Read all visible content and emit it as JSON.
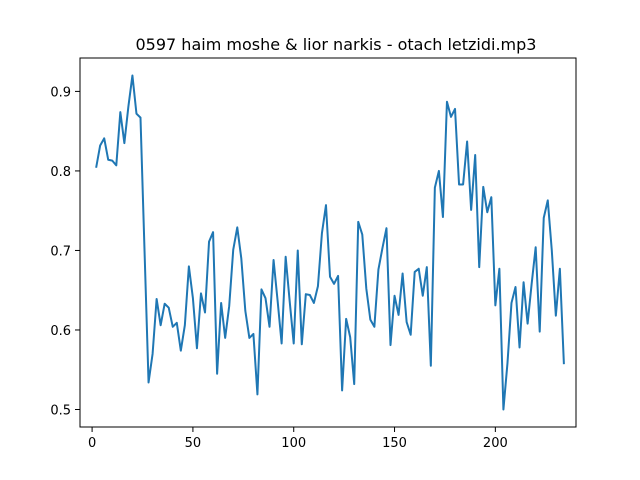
{
  "chart_data": {
    "type": "line",
    "title": "0597 haim moshe & lior narkis - otach letzidi.mp3",
    "xlabel": "",
    "ylabel": "",
    "xlim": [
      -6,
      240
    ],
    "ylim": [
      0.478,
      0.942
    ],
    "xticks": [
      0,
      50,
      100,
      150,
      200
    ],
    "yticks": [
      0.5,
      0.6,
      0.7,
      0.8,
      0.9
    ],
    "grid": false,
    "legend": "none",
    "colors": {
      "line": "#1f77b4"
    },
    "series": [
      {
        "x": [
          2,
          4,
          6,
          8,
          10,
          12,
          14,
          16,
          18,
          20,
          22,
          24,
          26,
          28,
          30,
          32,
          34,
          36,
          38,
          40,
          42,
          44,
          46,
          48,
          50,
          52,
          54,
          56,
          58,
          60,
          62,
          64,
          66,
          68,
          70,
          72,
          74,
          76,
          78,
          80,
          82,
          84,
          86,
          88,
          90,
          92,
          94,
          96,
          98,
          100,
          102,
          104,
          106,
          108,
          110,
          112,
          114,
          116,
          118,
          120,
          122,
          124,
          126,
          128,
          130,
          132,
          134,
          136,
          138,
          140,
          142,
          144,
          146,
          148,
          150,
          152,
          154,
          156,
          158,
          160,
          162,
          164,
          166,
          168,
          170,
          172,
          174,
          176,
          178,
          180,
          182,
          184,
          186,
          188,
          190,
          192,
          194,
          196,
          198,
          200,
          202,
          204,
          206,
          208,
          210,
          212,
          214,
          216,
          218,
          220,
          222,
          224,
          226,
          228,
          230,
          232,
          234
        ],
        "values": [
          0.804,
          0.832,
          0.841,
          0.814,
          0.813,
          0.807,
          0.874,
          0.835,
          0.881,
          0.92,
          0.872,
          0.867,
          0.7,
          0.534,
          0.57,
          0.639,
          0.606,
          0.633,
          0.628,
          0.604,
          0.609,
          0.574,
          0.606,
          0.68,
          0.64,
          0.577,
          0.646,
          0.622,
          0.711,
          0.723,
          0.545,
          0.634,
          0.59,
          0.63,
          0.701,
          0.729,
          0.69,
          0.624,
          0.59,
          0.595,
          0.519,
          0.651,
          0.64,
          0.604,
          0.688,
          0.637,
          0.583,
          0.692,
          0.636,
          0.583,
          0.7,
          0.582,
          0.645,
          0.644,
          0.634,
          0.655,
          0.722,
          0.757,
          0.667,
          0.658,
          0.668,
          0.524,
          0.614,
          0.591,
          0.532,
          0.736,
          0.72,
          0.652,
          0.613,
          0.604,
          0.676,
          0.703,
          0.728,
          0.581,
          0.643,
          0.619,
          0.671,
          0.61,
          0.594,
          0.673,
          0.677,
          0.643,
          0.679,
          0.555,
          0.779,
          0.8,
          0.742,
          0.887,
          0.868,
          0.878,
          0.783,
          0.783,
          0.837,
          0.751,
          0.82,
          0.679,
          0.78,
          0.748,
          0.767,
          0.631,
          0.677,
          0.5,
          0.558,
          0.634,
          0.654,
          0.578,
          0.66,
          0.608,
          0.658,
          0.704,
          0.598,
          0.741,
          0.763,
          0.7,
          0.618,
          0.677,
          0.557
        ]
      }
    ]
  }
}
